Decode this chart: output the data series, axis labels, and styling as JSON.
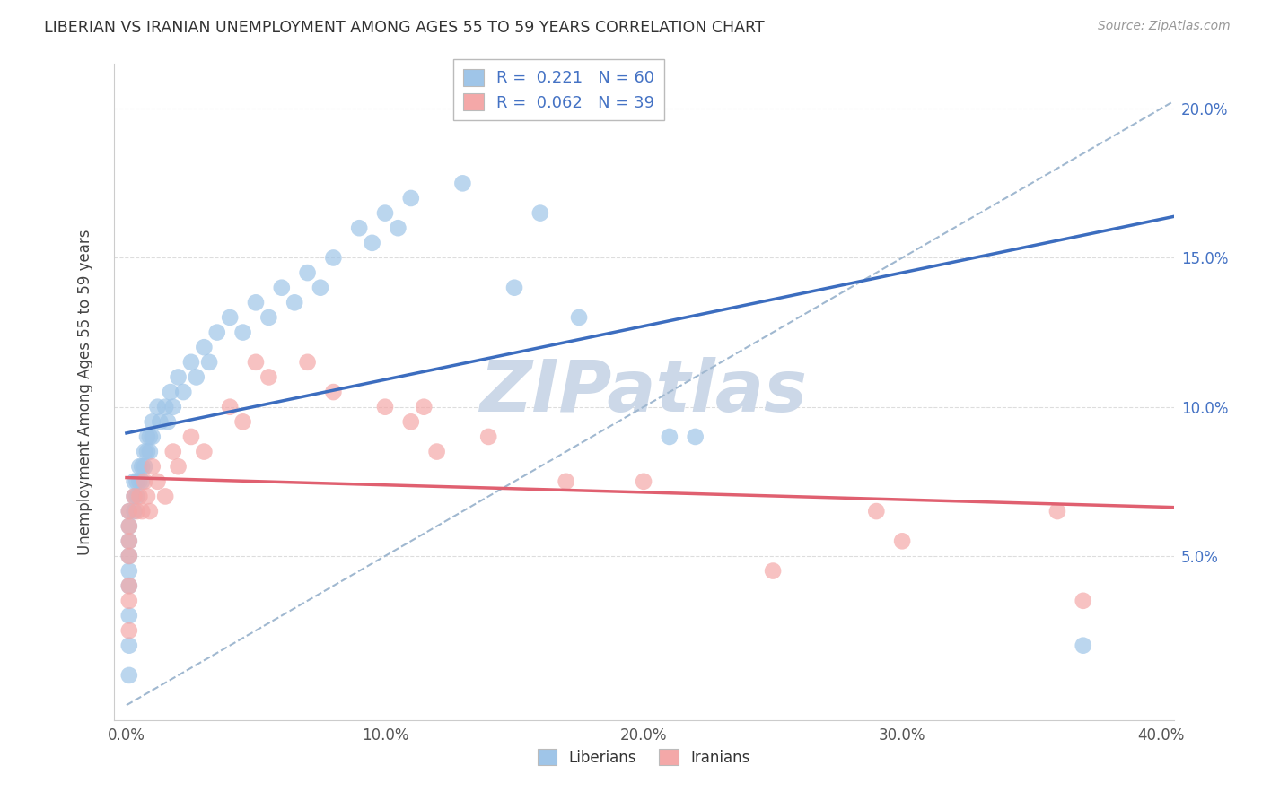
{
  "title": "LIBERIAN VS IRANIAN UNEMPLOYMENT AMONG AGES 55 TO 59 YEARS CORRELATION CHART",
  "source": "Source: ZipAtlas.com",
  "ylabel": "Unemployment Among Ages 55 to 59 years",
  "xlim": [
    -0.005,
    0.405
  ],
  "ylim": [
    -0.005,
    0.215
  ],
  "xtick_vals": [
    0.0,
    0.1,
    0.2,
    0.3,
    0.4
  ],
  "ytick_vals": [
    0.0,
    0.05,
    0.1,
    0.15,
    0.2
  ],
  "xticklabels": [
    "0.0%",
    "10.0%",
    "20.0%",
    "30.0%",
    "40.0%"
  ],
  "yticklabels_right": [
    "",
    "5.0%",
    "10.0%",
    "15.0%",
    "20.0%"
  ],
  "legend_liberian": "Liberians",
  "legend_iranian": "Iranians",
  "R_liberian": 0.221,
  "N_liberian": 60,
  "R_iranian": 0.062,
  "N_iranian": 39,
  "color_liberian": "#9fc5e8",
  "color_iranian": "#f4a8a8",
  "color_liberian_line": "#3c6dbf",
  "color_iranian_line": "#e06070",
  "color_dashed": "#a0b8d0",
  "watermark_color": "#ccd8e8",
  "lib_x": [
    0.001,
    0.001,
    0.001,
    0.001,
    0.001,
    0.001,
    0.001,
    0.001,
    0.001,
    0.003,
    0.003,
    0.003,
    0.004,
    0.004,
    0.005,
    0.005,
    0.006,
    0.006,
    0.007,
    0.007,
    0.008,
    0.008,
    0.009,
    0.009,
    0.01,
    0.01,
    0.012,
    0.013,
    0.015,
    0.016,
    0.017,
    0.018,
    0.02,
    0.022,
    0.025,
    0.027,
    0.03,
    0.032,
    0.035,
    0.04,
    0.045,
    0.05,
    0.055,
    0.06,
    0.065,
    0.07,
    0.075,
    0.08,
    0.09,
    0.095,
    0.1,
    0.105,
    0.11,
    0.13,
    0.15,
    0.16,
    0.175,
    0.21,
    0.22,
    0.37
  ],
  "lib_y": [
    0.065,
    0.06,
    0.055,
    0.05,
    0.045,
    0.04,
    0.03,
    0.02,
    0.01,
    0.075,
    0.07,
    0.065,
    0.075,
    0.07,
    0.08,
    0.075,
    0.08,
    0.075,
    0.085,
    0.08,
    0.09,
    0.085,
    0.09,
    0.085,
    0.095,
    0.09,
    0.1,
    0.095,
    0.1,
    0.095,
    0.105,
    0.1,
    0.11,
    0.105,
    0.115,
    0.11,
    0.12,
    0.115,
    0.125,
    0.13,
    0.125,
    0.135,
    0.13,
    0.14,
    0.135,
    0.145,
    0.14,
    0.15,
    0.16,
    0.155,
    0.165,
    0.16,
    0.17,
    0.175,
    0.14,
    0.165,
    0.13,
    0.09,
    0.09,
    0.02
  ],
  "iran_x": [
    0.001,
    0.001,
    0.001,
    0.001,
    0.001,
    0.001,
    0.001,
    0.003,
    0.004,
    0.005,
    0.006,
    0.007,
    0.008,
    0.009,
    0.01,
    0.012,
    0.015,
    0.018,
    0.02,
    0.025,
    0.03,
    0.04,
    0.045,
    0.05,
    0.055,
    0.07,
    0.08,
    0.1,
    0.11,
    0.115,
    0.12,
    0.14,
    0.17,
    0.2,
    0.25,
    0.29,
    0.3,
    0.36,
    0.37
  ],
  "iran_y": [
    0.065,
    0.06,
    0.055,
    0.05,
    0.04,
    0.035,
    0.025,
    0.07,
    0.065,
    0.07,
    0.065,
    0.075,
    0.07,
    0.065,
    0.08,
    0.075,
    0.07,
    0.085,
    0.08,
    0.09,
    0.085,
    0.1,
    0.095,
    0.115,
    0.11,
    0.115,
    0.105,
    0.1,
    0.095,
    0.1,
    0.085,
    0.09,
    0.075,
    0.075,
    0.045,
    0.065,
    0.055,
    0.065,
    0.035
  ]
}
